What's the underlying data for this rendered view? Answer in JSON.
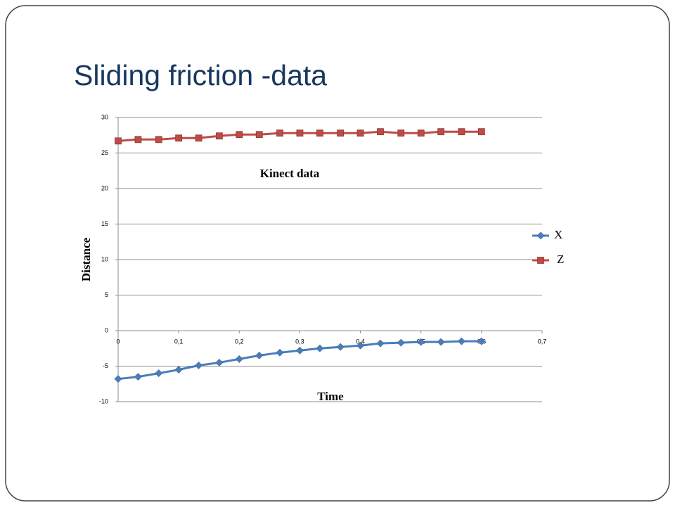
{
  "slide": {
    "title": "Sliding friction -data"
  },
  "chart_data": {
    "type": "line",
    "title": "Kinect data",
    "x_label": "Time",
    "y_label": "Distance",
    "x": [
      0,
      0.033,
      0.067,
      0.1,
      0.133,
      0.167,
      0.2,
      0.233,
      0.267,
      0.3,
      0.333,
      0.367,
      0.4,
      0.433,
      0.467,
      0.5,
      0.533,
      0.567,
      0.6
    ],
    "series": [
      {
        "name": "X",
        "color": "#4a7ebb",
        "marker": "diamond",
        "values": [
          -6.8,
          -6.5,
          -6.0,
          -5.5,
          -4.9,
          -4.5,
          -4.0,
          -3.5,
          -3.1,
          -2.8,
          -2.5,
          -2.3,
          -2.1,
          -1.8,
          -1.7,
          -1.6,
          -1.6,
          -1.5,
          -1.5
        ]
      },
      {
        "name": "Z",
        "color": "#be4b48",
        "marker": "square",
        "values": [
          26.7,
          26.9,
          26.9,
          27.1,
          27.1,
          27.4,
          27.6,
          27.6,
          27.8,
          27.8,
          27.8,
          27.8,
          27.8,
          28.0,
          27.8,
          27.8,
          28.0,
          28.0,
          28.0
        ]
      }
    ],
    "xlim": [
      0,
      0.7
    ],
    "xticks": [
      0,
      {
        "value": 0.1,
        "label": "0,1"
      },
      {
        "value": 0.2,
        "label": "0,2"
      },
      {
        "value": 0.3,
        "label": "0,3"
      },
      {
        "value": 0.4,
        "label": "0,4"
      },
      {
        "value": 0.5,
        "label": "0,5"
      },
      {
        "value": 0.6,
        "label": "0,6"
      },
      {
        "value": 0.7,
        "label": "0,7"
      }
    ],
    "ylim": [
      -10,
      30
    ],
    "yticks": [
      -10,
      -5,
      0,
      5,
      10,
      15,
      20,
      25,
      30
    ],
    "grid": true,
    "legend": "right"
  }
}
